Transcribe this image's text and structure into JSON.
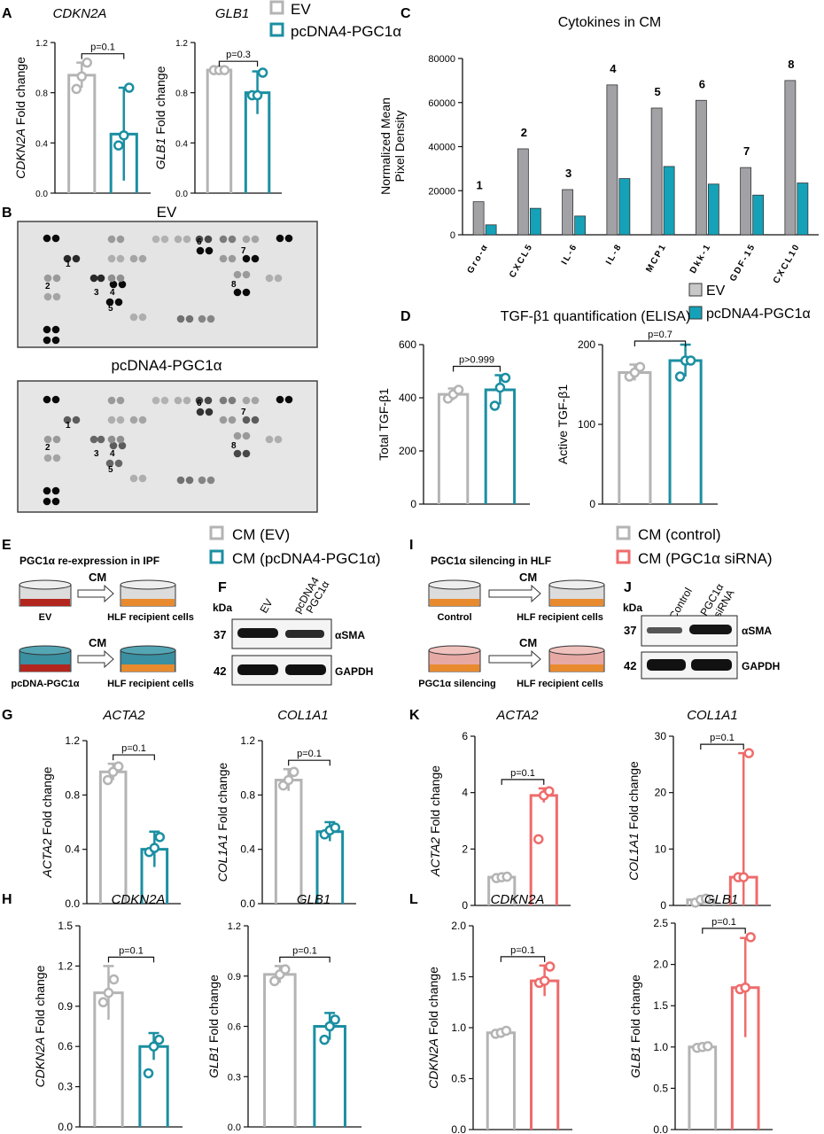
{
  "colors": {
    "ev": "#b4b4b4",
    "pgc": "#1b8fa2",
    "sirna": "#ef6b6b",
    "grey_bar": "#a2a2a6",
    "cyto_teal": "#15a2b8"
  },
  "panels": {
    "A": "A",
    "B": "B",
    "C": "C",
    "D": "D",
    "E": "E",
    "F": "F",
    "G": "G",
    "H": "H",
    "I": "I",
    "J": "J",
    "K": "K",
    "L": "L"
  },
  "legend_top": {
    "ev": "EV",
    "pgc": "pcDNA4-PGC1α"
  },
  "panel_b": {
    "ev_title": "EV",
    "pgc_title": "pcDNA4-PGC1α",
    "spot_labels": [
      "1",
      "2",
      "3",
      "4",
      "5",
      "6",
      "7",
      "8"
    ]
  },
  "panel_d": {
    "title": "TGF-β1 quantification (ELISA)"
  },
  "panel_e": {
    "legend": {
      "ev": "CM (EV)",
      "pgc": "CM (pcDNA4-PGC1α)"
    },
    "title": "PGC1α re-expression in IPF",
    "cm": "CM",
    "dish1": "EV",
    "dish2": "pcDNA-PGC1α",
    "recipient": "HLF recipient cells"
  },
  "panel_f": {
    "kda": "kDa",
    "lane1": "EV",
    "lane2_line1": "pcDNA4",
    "lane2_line2": "PGC1α",
    "mw1": "37",
    "mw2": "42",
    "band1": "αSMA",
    "band2": "GAPDH"
  },
  "panel_i": {
    "legend": {
      "ctrl": "CM (control)",
      "sirna": "CM (PGC1α siRNA)"
    },
    "title": "PGC1α silencing in HLF",
    "cm": "CM",
    "dish1": "Control",
    "dish2": "PGC1α silencing",
    "recipient": "HLF recipient cells"
  },
  "panel_j": {
    "kda": "kDa",
    "lane1": "Control",
    "lane2_line1": "PGC1α",
    "lane2_line2": "siRNA",
    "mw1": "37",
    "mw2": "42",
    "band1": "αSMA",
    "band2": "GAPDH"
  },
  "chart_data": [
    {
      "id": "A1",
      "type": "bar",
      "title": "CDKN2A",
      "ylabel_italic": "CDKN2A",
      "ylabel_rest": "Fold change",
      "ylim": [
        0,
        1.2
      ],
      "yticks": [
        "0.0",
        "0.4",
        "0.8",
        "1.2"
      ],
      "pvalue": "p=0.1",
      "series": [
        {
          "name": "EV",
          "mean": 0.94,
          "sd": 0.1,
          "points": [
            0.83,
            0.93,
            1.04
          ]
        },
        {
          "name": "pcDNA4-PGC1α",
          "mean": 0.47,
          "sd": 0.37,
          "points": [
            0.38,
            0.46,
            0.84
          ]
        }
      ]
    },
    {
      "id": "A2",
      "type": "bar",
      "title": "GLB1",
      "ylabel_italic": "GLB1",
      "ylabel_rest": "Fold change",
      "ylim": [
        0,
        1.2
      ],
      "yticks": [
        "0.0",
        "0.4",
        "0.8",
        "1.2"
      ],
      "pvalue": "p=0.3",
      "series": [
        {
          "name": "EV",
          "mean": 0.98,
          "sd": 0.0,
          "points": [
            0.98,
            0.98,
            0.98
          ]
        },
        {
          "name": "pcDNA4-PGC1α",
          "mean": 0.8,
          "sd": 0.17,
          "points": [
            0.78,
            0.78,
            0.96
          ]
        }
      ]
    },
    {
      "id": "C",
      "type": "bar",
      "title": "Cytokines in CM",
      "ylabel": [
        "Normalized Mean",
        "Pixel Density"
      ],
      "ylim": [
        0,
        80000
      ],
      "yticks": [
        "0",
        "20000",
        "40000",
        "60000",
        "80000"
      ],
      "categories": [
        "Gro-α",
        "CXCL5",
        "IL-6",
        "IL-8",
        "MCP1",
        "Dkk-1",
        "GDF-15",
        "CXCL10"
      ],
      "numbers": [
        "1",
        "2",
        "3",
        "4",
        "5",
        "6",
        "7",
        "8"
      ],
      "series": [
        {
          "name": "EV",
          "values": [
            15000,
            39000,
            20500,
            68000,
            57500,
            61000,
            30500,
            70000
          ]
        },
        {
          "name": "pcDNA4-PGC1α",
          "values": [
            4500,
            12000,
            8500,
            25500,
            31000,
            23000,
            18000,
            23500
          ]
        }
      ]
    },
    {
      "id": "D1",
      "type": "bar",
      "ylabel": "Total TGF-β1",
      "ylim": [
        0,
        600
      ],
      "yticks": [
        "0",
        "200",
        "400",
        "600"
      ],
      "pvalue": "p>0.999",
      "series": [
        {
          "name": "EV",
          "mean": 413,
          "sd": 22,
          "points": [
            397,
            413,
            430
          ]
        },
        {
          "name": "pcDNA4-PGC1α",
          "mean": 430,
          "sd": 55,
          "points": [
            370,
            438,
            475
          ]
        }
      ]
    },
    {
      "id": "D2",
      "type": "bar",
      "ylabel": "Active TGF-β1",
      "ylim": [
        0,
        200
      ],
      "yticks": [
        "0",
        "100",
        "200"
      ],
      "pvalue": "p=0.7",
      "series": [
        {
          "name": "EV",
          "mean": 165,
          "sd": 10,
          "points": [
            160,
            165,
            172
          ]
        },
        {
          "name": "pcDNA4-PGC1α",
          "mean": 180,
          "sd": 20,
          "points": [
            160,
            180,
            180
          ]
        }
      ]
    },
    {
      "id": "G1",
      "type": "bar",
      "title": "ACTA2",
      "ylabel_italic": "ACTA2",
      "ylabel_rest": "Fold change",
      "ylim": [
        0,
        1.2
      ],
      "yticks": [
        "0.0",
        "0.4",
        "0.8",
        "1.2"
      ],
      "pvalue": "p=0.1",
      "series": [
        {
          "name": "EV",
          "mean": 0.97,
          "sd": 0.06,
          "points": [
            0.91,
            0.97,
            1.01
          ]
        },
        {
          "name": "pcDNA4-PGC1α",
          "mean": 0.4,
          "sd": 0.13,
          "points": [
            0.38,
            0.41,
            0.49
          ]
        }
      ]
    },
    {
      "id": "G2",
      "type": "bar",
      "title": "COL1A1",
      "ylabel_italic": "COL1A1",
      "ylabel_rest": "Fold change",
      "ylim": [
        0,
        1.2
      ],
      "yticks": [
        "0.0",
        "0.4",
        "0.8",
        "1.2"
      ],
      "pvalue": "p=0.1",
      "series": [
        {
          "name": "EV",
          "mean": 0.91,
          "sd": 0.08,
          "points": [
            0.87,
            0.91,
            0.97
          ]
        },
        {
          "name": "pcDNA4-PGC1α",
          "mean": 0.53,
          "sd": 0.07,
          "points": [
            0.51,
            0.54,
            0.56
          ]
        }
      ]
    },
    {
      "id": "H1",
      "type": "bar",
      "title": "CDKN2A",
      "ylabel_italic": "CDKN2A",
      "ylabel_rest": "Fold change",
      "ylim": [
        0,
        1.5
      ],
      "yticks": [
        "0.0",
        "0.3",
        "0.6",
        "0.9",
        "1.2",
        "1.5"
      ],
      "pvalue": "p=0.1",
      "series": [
        {
          "name": "EV",
          "mean": 1.0,
          "sd": 0.2,
          "points": [
            0.93,
            1.0,
            1.1
          ]
        },
        {
          "name": "pcDNA4-PGC1α",
          "mean": 0.6,
          "sd": 0.1,
          "points": [
            0.4,
            0.6,
            0.65
          ]
        }
      ]
    },
    {
      "id": "H2",
      "type": "bar",
      "title": "GLB1",
      "ylabel_italic": "GLB1",
      "ylabel_rest": "Fold change",
      "ylim": [
        0,
        1.2
      ],
      "yticks": [
        "0.0",
        "0.3",
        "0.6",
        "0.9",
        "1.2"
      ],
      "pvalue": "p=0.1",
      "series": [
        {
          "name": "EV",
          "mean": 0.91,
          "sd": 0.05,
          "points": [
            0.87,
            0.91,
            0.94
          ]
        },
        {
          "name": "pcDNA4-PGC1α",
          "mean": 0.6,
          "sd": 0.08,
          "points": [
            0.52,
            0.6,
            0.64
          ]
        }
      ]
    },
    {
      "id": "K1",
      "type": "bar",
      "title": "ACTA2",
      "ylabel_italic": "ACTA2",
      "ylabel_rest": "Fold change",
      "ylim": [
        0,
        6
      ],
      "yticks": [
        "0",
        "2",
        "4",
        "6"
      ],
      "pvalue": "p=0.1",
      "series": [
        {
          "name": "CM (control)",
          "mean": 1.0,
          "sd": 0.0,
          "points": [
            0.97,
            1.0,
            1.02
          ]
        },
        {
          "name": "CM (PGC1α siRNA)",
          "mean": 3.9,
          "sd": 0.25,
          "points": [
            2.35,
            3.9,
            4.05
          ]
        }
      ]
    },
    {
      "id": "K2",
      "type": "bar",
      "title": "COL1A1",
      "ylabel_italic": "COL1A1",
      "ylabel_rest": "Fold change",
      "ylim": [
        0,
        30
      ],
      "yticks": [
        "0",
        "10",
        "20",
        "30"
      ],
      "pvalue": "p=0.1",
      "series": [
        {
          "name": "CM (control)",
          "mean": 1.0,
          "sd": 0.0,
          "points": [
            0.5,
            1.0,
            1.2
          ]
        },
        {
          "name": "CM (PGC1α siRNA)",
          "mean": 5.0,
          "sd": 22,
          "points": [
            5.0,
            5.0,
            27.0
          ]
        }
      ]
    },
    {
      "id": "L1",
      "type": "bar",
      "title": "CDKN2A",
      "ylabel_italic": "CDKN2A",
      "ylabel_rest": "Fold change",
      "ylim": [
        0,
        2.0
      ],
      "yticks": [
        "0.0",
        "0.5",
        "1.0",
        "1.5",
        "2.0"
      ],
      "pvalue": "p=0.1",
      "series": [
        {
          "name": "CM (control)",
          "mean": 0.95,
          "sd": 0.02,
          "points": [
            0.94,
            0.95,
            0.97
          ]
        },
        {
          "name": "CM (PGC1α siRNA)",
          "mean": 1.46,
          "sd": 0.15,
          "points": [
            1.44,
            1.46,
            1.6
          ]
        }
      ]
    },
    {
      "id": "L2",
      "type": "bar",
      "title": "GLB1",
      "ylabel_italic": "GLB1",
      "ylabel_rest": "Fold change",
      "ylim": [
        0,
        2.5
      ],
      "yticks": [
        "0.0",
        "0.5",
        "1.0",
        "1.5",
        "2.0",
        "2.5"
      ],
      "pvalue": "p=0.1",
      "series": [
        {
          "name": "CM (control)",
          "mean": 1.0,
          "sd": 0.0,
          "points": [
            0.99,
            1.0,
            1.01
          ]
        },
        {
          "name": "CM (PGC1α siRNA)",
          "mean": 1.72,
          "sd": 0.6,
          "points": [
            1.7,
            1.72,
            2.33
          ]
        }
      ]
    }
  ]
}
